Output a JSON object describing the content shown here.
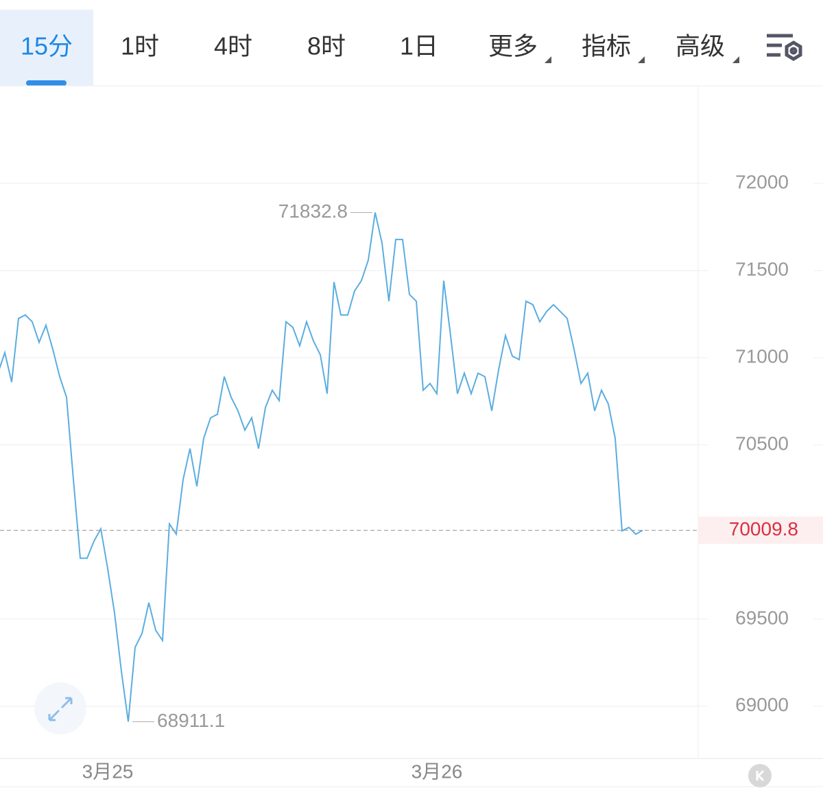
{
  "tabs": [
    "15分",
    "1时",
    "4时",
    "8时",
    "1日",
    "更多",
    "指标",
    "高级"
  ],
  "chart_data": {
    "type": "line",
    "categories": [
      null,
      null,
      null,
      null,
      null,
      null,
      null,
      null,
      null,
      null,
      null,
      null,
      null,
      null,
      null,
      null,
      "3月25",
      null,
      null,
      null,
      null,
      null,
      null,
      null,
      null,
      null,
      null,
      null,
      null,
      null,
      null,
      null,
      null,
      null,
      null,
      null,
      null,
      null,
      null,
      null,
      null,
      null,
      null,
      null,
      null,
      null,
      null,
      null,
      null,
      null,
      null,
      null,
      null,
      null,
      null,
      null,
      null,
      null,
      null,
      null,
      null,
      null,
      null,
      null,
      "3月26",
      null,
      null,
      null,
      null,
      null,
      null,
      null,
      null,
      null,
      null,
      null,
      null,
      null,
      null,
      null,
      null,
      null,
      null,
      null,
      null,
      null,
      null,
      null,
      null,
      null,
      null,
      null,
      null,
      null,
      null
    ],
    "series": [
      {
        "color": "#5aade0",
        "values": [
          70911,
          71029,
          70860,
          71225,
          71245,
          71206,
          71088,
          71186,
          71048,
          70891,
          70773,
          70301,
          69849,
          69849,
          69947,
          70018,
          69790,
          69535,
          69200,
          68911.1,
          69338,
          69417,
          69594,
          69436,
          69377,
          70046,
          69987,
          70301,
          70478,
          70262,
          70537,
          70655,
          70675,
          70891,
          70773,
          70695,
          70584,
          70655,
          70478,
          70714,
          70813,
          70754,
          71206,
          71174,
          71068,
          71206,
          71096,
          71017,
          70793,
          71434,
          71245,
          71245,
          71383,
          71442,
          71560,
          71832.8,
          71658,
          71324,
          71678,
          71678,
          71363,
          71324,
          70813,
          70852,
          70793,
          71442,
          71127,
          70793,
          70911,
          70793,
          70911,
          70891,
          70695,
          70930,
          71127,
          71009,
          70989,
          71324,
          71304,
          71206,
          71265,
          71304,
          71265,
          71225,
          71048,
          70852,
          70911,
          70695,
          70813,
          70734,
          70537,
          70006,
          70026,
          69987,
          70009.8
        ]
      }
    ],
    "ylim": [
      68700,
      72560
    ],
    "yticks": [
      69000,
      69500,
      70500,
      71000,
      71500,
      72000
    ],
    "grid": true
  }
}
